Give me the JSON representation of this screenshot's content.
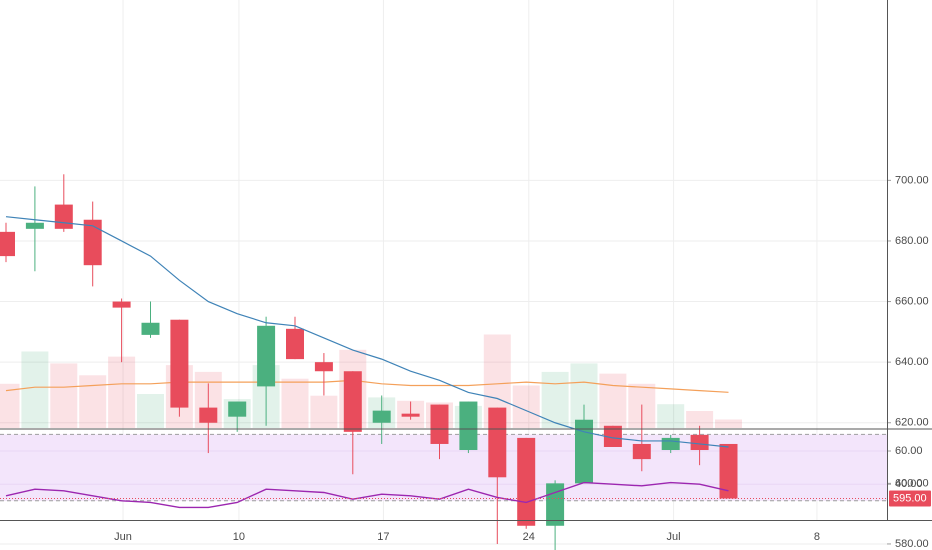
{
  "chart_data": {
    "type": "candlestick",
    "colors": {
      "up": "#4bb07f",
      "down": "#e84c5c",
      "sma_fast": "#3f83b7",
      "volume_ma": "#f4a05a",
      "rsi": "#9c27b0",
      "rsi_band": "#f3e5fb",
      "last_price": "#e84c5c",
      "grid": "#eeeeee"
    },
    "price_axis": {
      "ticks": [
        "580.00",
        "600.00",
        "620.00",
        "640.00",
        "660.00",
        "680.00",
        "700.00"
      ],
      "range": [
        570,
        705
      ]
    },
    "rsi_axis": {
      "ticks": [
        "40.00",
        "60.00"
      ],
      "range": [
        24,
        70
      ],
      "band": [
        30,
        70
      ]
    },
    "x_axis": {
      "labels": [
        "Jun",
        "10",
        "17",
        "24",
        "Jul",
        "8"
      ]
    },
    "last_price": "595.00",
    "candles": [
      {
        "o": 683,
        "h": 686,
        "l": 673,
        "c": 675
      },
      {
        "o": 684,
        "h": 698,
        "l": 670,
        "c": 686
      },
      {
        "o": 692,
        "h": 702,
        "l": 683,
        "c": 684
      },
      {
        "o": 687,
        "h": 693,
        "l": 665,
        "c": 672
      },
      {
        "o": 660,
        "h": 661,
        "l": 640,
        "c": 658
      },
      {
        "o": 649,
        "h": 660,
        "l": 648,
        "c": 653
      },
      {
        "o": 654,
        "h": 654,
        "l": 622,
        "c": 625
      },
      {
        "o": 625,
        "h": 633,
        "l": 610,
        "c": 620
      },
      {
        "o": 622,
        "h": 627,
        "l": 617,
        "c": 627
      },
      {
        "o": 632,
        "h": 655,
        "l": 619,
        "c": 652
      },
      {
        "o": 651,
        "h": 655,
        "l": 641,
        "c": 641
      },
      {
        "o": 640,
        "h": 643,
        "l": 629,
        "c": 637
      },
      {
        "o": 637,
        "h": 637,
        "l": 603,
        "c": 617
      },
      {
        "o": 620,
        "h": 629,
        "l": 613,
        "c": 624
      },
      {
        "o": 623,
        "h": 627,
        "l": 621,
        "c": 622
      },
      {
        "o": 626,
        "h": 626,
        "l": 608,
        "c": 613
      },
      {
        "o": 611,
        "h": 627,
        "l": 610,
        "c": 627
      },
      {
        "o": 625,
        "h": 625,
        "l": 580,
        "c": 602
      },
      {
        "o": 615,
        "h": 615,
        "l": 585,
        "c": 586
      },
      {
        "o": 586,
        "h": 601,
        "l": 576,
        "c": 600
      },
      {
        "o": 600,
        "h": 626,
        "l": 600,
        "c": 621
      },
      {
        "o": 619,
        "h": 619,
        "l": 612,
        "c": 612
      },
      {
        "o": 613,
        "h": 626,
        "l": 604,
        "c": 608
      },
      {
        "o": 611,
        "h": 616,
        "l": 610,
        "c": 615
      },
      {
        "o": 616,
        "h": 619,
        "l": 606,
        "c": 611
      },
      {
        "o": 613,
        "h": 613,
        "l": 595,
        "c": 595
      }
    ],
    "sma": [
      688,
      687,
      686,
      685,
      680,
      675,
      667,
      660,
      656,
      653,
      652,
      648,
      644,
      641,
      637,
      634,
      630,
      628,
      624,
      620,
      617,
      615,
      614,
      614,
      613,
      612
    ],
    "volume": [
      26,
      45,
      38,
      31,
      42,
      20,
      37,
      33,
      17,
      37,
      29,
      19,
      46,
      18,
      16,
      15,
      13,
      55,
      25,
      33,
      38,
      32,
      26,
      14,
      10,
      5
    ],
    "volume_ma": [
      22,
      24,
      24,
      25,
      26,
      26,
      27,
      27,
      27,
      27,
      27,
      27,
      28,
      26,
      25,
      25,
      25,
      26,
      27,
      26,
      27,
      25,
      24,
      23,
      22,
      21
    ],
    "rsi": [
      33,
      37,
      36,
      33,
      30,
      29,
      26,
      26,
      29,
      37,
      36,
      35,
      31,
      34,
      33,
      31,
      37,
      32,
      29,
      35,
      41,
      40,
      39,
      41,
      40,
      36
    ]
  }
}
